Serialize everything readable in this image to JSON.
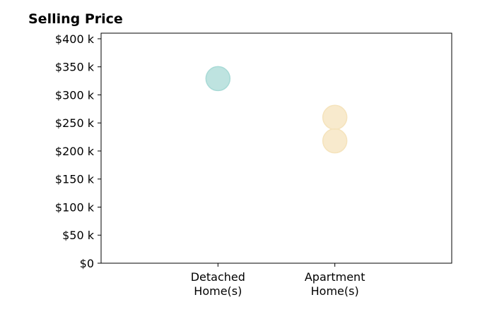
{
  "chart_data": {
    "type": "scatter",
    "title": "Selling Price",
    "xlabel": "",
    "ylabel": "",
    "categories": [
      [
        "Detached",
        "Home(s)"
      ],
      [
        "Apartment",
        "Home(s)"
      ]
    ],
    "y_ticks": [
      "$0",
      "$50 k",
      "$100 k",
      "$150 k",
      "$200 k",
      "$250 k",
      "$300 k",
      "$350 k",
      "$400 k"
    ],
    "y_tick_values": [
      0,
      50000,
      100000,
      150000,
      200000,
      250000,
      300000,
      350000,
      400000
    ],
    "ylim": [
      0,
      410000
    ],
    "x_range": [
      -1,
      2
    ],
    "grid": false,
    "points": [
      {
        "category": 0,
        "value": 329000,
        "color": "#a8dad6"
      },
      {
        "category": 1,
        "value": 260000,
        "color": "#f5e3bc"
      },
      {
        "category": 1,
        "value": 218000,
        "color": "#f5e3bc"
      }
    ]
  }
}
